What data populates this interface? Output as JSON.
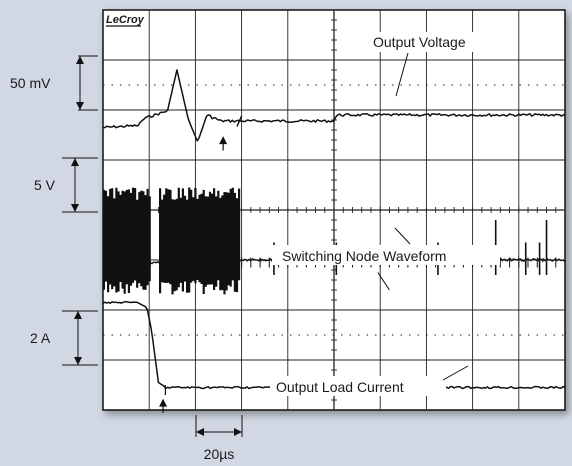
{
  "chart_data": {
    "type": "line",
    "logo": "LeCroy",
    "grid": {
      "divisions_x": 10,
      "divisions_y": 8
    },
    "time_scale": "20µs",
    "series": [
      {
        "name": "Output Voltage",
        "scale": "50 mV",
        "description": "transient spike of about +1.3 divisions at load step, then settles slightly higher"
      },
      {
        "name": "Switching Node Waveform",
        "scale": "5 V",
        "description": "dense switching bursts before the load step, sparse pulses after"
      },
      {
        "name": "Output Load Current",
        "scale": "2 A",
        "description": "steps down by about 2.3 divisions (~4.6 A) between 0.75 and 1.15 divisions"
      }
    ]
  },
  "colors": {
    "background": "#d2d8e3",
    "screen": "#ffffff",
    "trace": "#111111",
    "grid": "#222222"
  }
}
